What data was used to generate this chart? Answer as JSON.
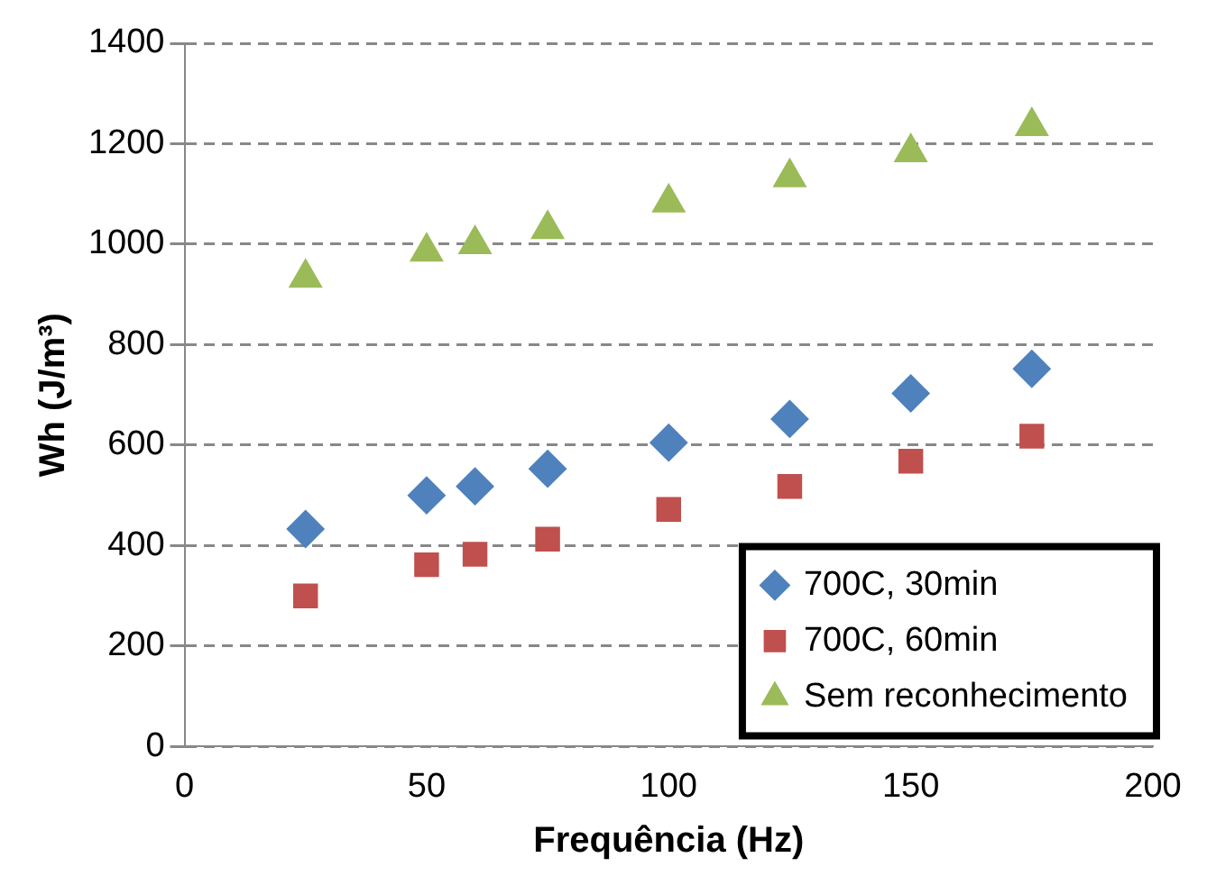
{
  "chart_data": {
    "type": "scatter",
    "xlabel": "Frequência (Hz)",
    "ylabel": "Wh (J/m³)",
    "xlim": [
      0,
      200
    ],
    "xticks": [
      0,
      50,
      100,
      150,
      200
    ],
    "ylim": [
      0,
      1400
    ],
    "yticks": [
      0,
      200,
      400,
      600,
      800,
      1000,
      1200,
      1400
    ],
    "grid": "y",
    "legend": "bottom right",
    "x": [
      25,
      50,
      60,
      75,
      100,
      125,
      150,
      175
    ],
    "series": [
      {
        "name": "700C, 30min",
        "color": "#4f81bd",
        "marker": "diamond",
        "values": [
          433,
          500,
          518,
          553,
          605,
          652,
          703,
          752
        ]
      },
      {
        "name": "700C, 60min",
        "color": "#c0504d",
        "marker": "square",
        "values": [
          300,
          362,
          383,
          413,
          472,
          518,
          568,
          618
        ]
      },
      {
        "name": "Sem reconhecimento",
        "color": "#9bbb59",
        "marker": "triangle",
        "values": [
          933,
          985,
          1000,
          1030,
          1083,
          1133,
          1183,
          1235
        ]
      }
    ]
  }
}
